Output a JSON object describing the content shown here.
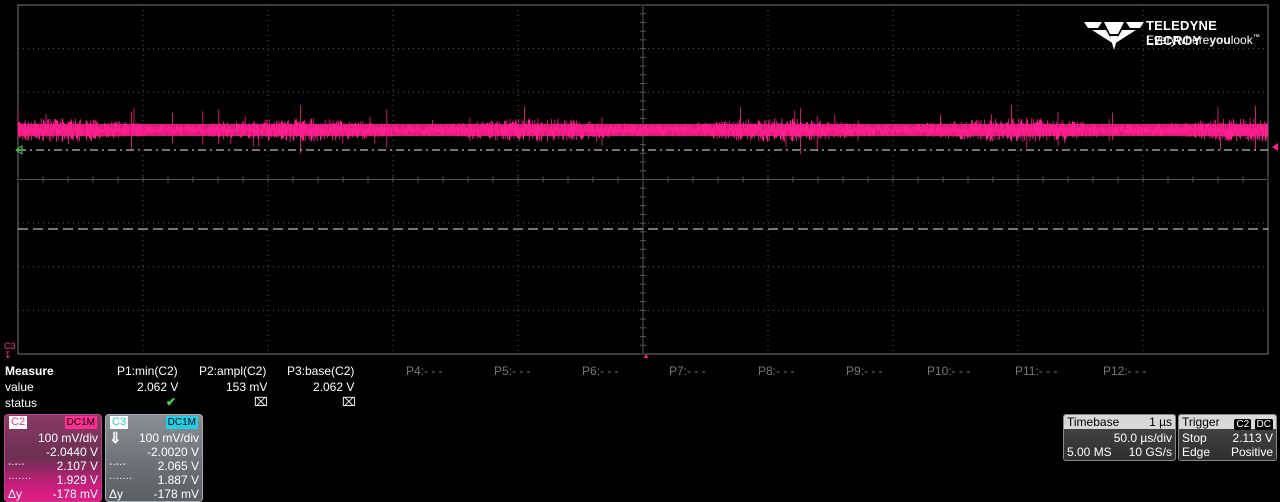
{
  "brand": {
    "name": "TELEDYNE LECROY",
    "tagline_a": "Everywhere",
    "tagline_b": "you",
    "tagline_c": "look",
    "tm": "™"
  },
  "channel_marker": "C3",
  "measure": {
    "title": "Measure",
    "row_value": "value",
    "row_status": "status",
    "params": [
      {
        "label": "P1:min(C2)",
        "value": "2.062 V",
        "status": "ok"
      },
      {
        "label": "P2:ampl(C2)",
        "value": "153 mV",
        "status": "na"
      },
      {
        "label": "P3:base(C2)",
        "value": "2.062 V",
        "status": "na"
      },
      {
        "label": "P4:- - -"
      },
      {
        "label": "P5:- - -"
      },
      {
        "label": "P6:- - -"
      },
      {
        "label": "P7:- - -"
      },
      {
        "label": "P8:- - -"
      },
      {
        "label": "P9:- - -"
      },
      {
        "label": "P10:- - -"
      },
      {
        "label": "P11:- - -"
      },
      {
        "label": "P12:- - -"
      }
    ]
  },
  "c2": {
    "name": "C2",
    "coupling": "DC1M",
    "scale": "100 mV/div",
    "offset": "-2.0440 V",
    "cursor1": "2.107 V",
    "cursor2": "1.929 V",
    "dy_label": "Δy",
    "dy": "-178 mV"
  },
  "c3": {
    "name": "C3",
    "coupling": "DC1M",
    "scale": "100 mV/div",
    "offset": "-2.0020 V",
    "cursor1": "2.065 V",
    "cursor2": "1.887 V",
    "dy_label": "Δy",
    "dy": "-178 mV"
  },
  "timebase": {
    "title": "Timebase",
    "delay": "1 µs",
    "tdiv": "50.0 µs/div",
    "samples": "5.00 MS",
    "rate": "10 GS/s"
  },
  "trigger": {
    "title": "Trigger",
    "source": "C2",
    "coupling": "DC",
    "mode": "Stop",
    "level": "2.113 V",
    "type": "Edge",
    "slope": "Positive"
  },
  "colors": {
    "trace": "#ff1f8e",
    "c3": "#21d0e8",
    "grid": "#555555",
    "ok": "#3ce13c"
  }
}
